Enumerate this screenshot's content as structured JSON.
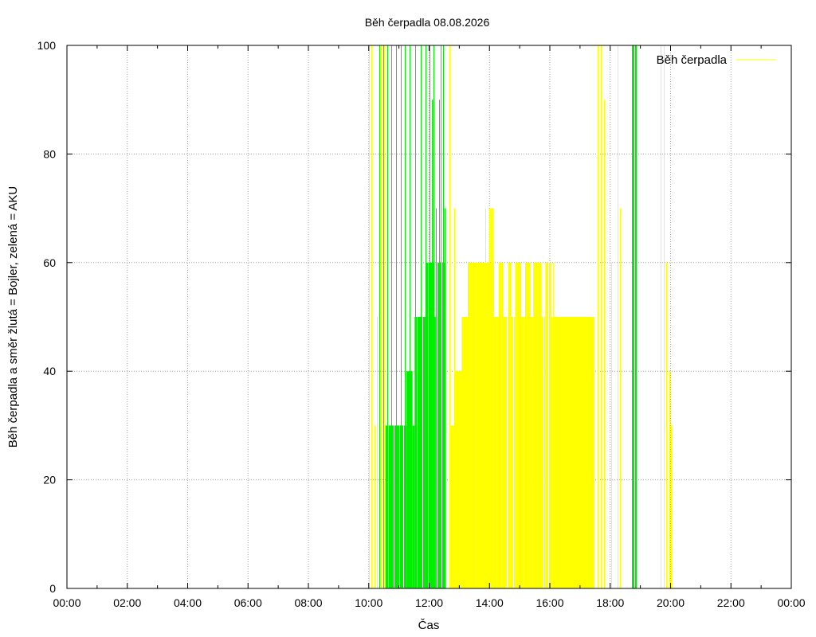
{
  "chart_data": {
    "type": "bar",
    "title": "Běh čerpadla 08.08.2026",
    "xlabel": "Čas",
    "ylabel": "Běh čerpadla a směr žlutá = Bojler, zelená = AKU",
    "xlim": [
      0,
      24
    ],
    "ylim": [
      0,
      100
    ],
    "xticks": [
      "00:00",
      "02:00",
      "04:00",
      "06:00",
      "08:00",
      "10:00",
      "12:00",
      "14:00",
      "16:00",
      "18:00",
      "20:00",
      "22:00",
      "00:00"
    ],
    "yticks": [
      "0",
      "20",
      "40",
      "60",
      "80",
      "100"
    ],
    "grid": true,
    "legend": {
      "position": "top-right",
      "entries": [
        "Běh čerpadla"
      ]
    },
    "colors": {
      "bojler": "#ffff00",
      "aku": "#00ee00",
      "grid": "#a0a0a0"
    },
    "series": [
      {
        "name": "Běh čerpadla",
        "color": "#ffff00",
        "thin_spikes": [
          {
            "x": 10.0,
            "y": 100
          },
          {
            "x": 10.08,
            "y": 100
          },
          {
            "x": 10.18,
            "y": 30
          },
          {
            "x": 10.28,
            "y": 50
          },
          {
            "x": 10.4,
            "y": 100
          },
          {
            "x": 10.52,
            "y": 100
          },
          {
            "x": 12.38,
            "y": 70
          },
          {
            "x": 12.55,
            "y": 70
          },
          {
            "x": 12.68,
            "y": 100
          },
          {
            "x": 12.82,
            "y": 70
          },
          {
            "x": 12.88,
            "y": 40
          },
          {
            "x": 13.05,
            "y": 40
          },
          {
            "x": 13.18,
            "y": 50
          },
          {
            "x": 13.85,
            "y": 70
          },
          {
            "x": 14.0,
            "y": 70
          },
          {
            "x": 14.05,
            "y": 70
          },
          {
            "x": 14.1,
            "y": 70
          },
          {
            "x": 17.58,
            "y": 100
          },
          {
            "x": 17.68,
            "y": 100
          },
          {
            "x": 17.8,
            "y": 90
          },
          {
            "x": 18.02,
            "y": 60
          },
          {
            "x": 18.25,
            "y": 100
          },
          {
            "x": 18.32,
            "y": 70
          },
          {
            "x": 19.68,
            "y": 100
          },
          {
            "x": 19.78,
            "y": 100
          },
          {
            "x": 19.86,
            "y": 60
          },
          {
            "x": 19.95,
            "y": 40
          },
          {
            "x": 20.0,
            "y": 30
          }
        ],
        "filled": [
          {
            "x0": 12.68,
            "x1": 12.86,
            "y": 30
          },
          {
            "x0": 12.86,
            "x1": 13.08,
            "y": 40
          },
          {
            "x0": 13.08,
            "x1": 13.28,
            "y": 50
          },
          {
            "x0": 13.28,
            "x1": 14.15,
            "y": 60
          },
          {
            "x0": 14.15,
            "x1": 14.3,
            "y": 50
          },
          {
            "x0": 14.3,
            "x1": 14.45,
            "y": 60
          },
          {
            "x0": 14.45,
            "x1": 14.62,
            "y": 50
          },
          {
            "x0": 14.62,
            "x1": 14.72,
            "y": 60
          },
          {
            "x0": 14.72,
            "x1": 14.85,
            "y": 50
          },
          {
            "x0": 14.85,
            "x1": 15.05,
            "y": 60
          },
          {
            "x0": 15.05,
            "x1": 15.18,
            "y": 50
          },
          {
            "x0": 15.18,
            "x1": 15.35,
            "y": 60
          },
          {
            "x0": 15.35,
            "x1": 15.45,
            "y": 50
          },
          {
            "x0": 15.45,
            "x1": 15.72,
            "y": 60
          },
          {
            "x0": 15.72,
            "x1": 15.85,
            "y": 50
          },
          {
            "x0": 15.85,
            "x1": 16.05,
            "y": 60
          },
          {
            "x0": 16.05,
            "x1": 16.1,
            "y": 50
          },
          {
            "x0": 16.1,
            "x1": 16.1,
            "y": 60
          },
          {
            "x0": 16.1,
            "x1": 17.48,
            "y": 50
          }
        ],
        "dips": [
          13.55,
          14.22,
          14.38,
          14.58,
          14.78,
          15.12,
          15.4,
          15.6,
          15.78,
          15.95,
          16.08
        ]
      },
      {
        "color": "#00ee00",
        "thin_spikes": [
          {
            "x": 10.35,
            "y": 100
          },
          {
            "x": 10.48,
            "y": 100
          },
          {
            "x": 10.62,
            "y": 100
          },
          {
            "x": 10.75,
            "y": 100
          },
          {
            "x": 10.9,
            "y": 100
          },
          {
            "x": 11.05,
            "y": 100
          },
          {
            "x": 11.2,
            "y": 100
          },
          {
            "x": 11.35,
            "y": 100
          },
          {
            "x": 11.55,
            "y": 100
          },
          {
            "x": 11.72,
            "y": 100
          },
          {
            "x": 11.88,
            "y": 100
          },
          {
            "x": 12.0,
            "y": 100
          },
          {
            "x": 12.08,
            "y": 90
          },
          {
            "x": 12.15,
            "y": 100
          },
          {
            "x": 12.22,
            "y": 70
          },
          {
            "x": 12.32,
            "y": 90
          },
          {
            "x": 12.38,
            "y": 100
          },
          {
            "x": 12.45,
            "y": 100
          },
          {
            "x": 12.52,
            "y": 70
          }
        ],
        "filled": [
          {
            "x0": 10.55,
            "x1": 11.25,
            "y": 30
          },
          {
            "x0": 11.25,
            "x1": 11.45,
            "y": 40
          },
          {
            "x0": 11.45,
            "x1": 11.52,
            "y": 30
          },
          {
            "x0": 11.52,
            "x1": 11.88,
            "y": 50
          },
          {
            "x0": 11.88,
            "x1": 12.15,
            "y": 60
          },
          {
            "x0": 12.15,
            "x1": 12.22,
            "y": 50
          },
          {
            "x0": 12.22,
            "x1": 12.55,
            "y": 60
          },
          {
            "x0": 18.72,
            "x1": 18.88,
            "y": 100
          }
        ],
        "dips": [
          10.65,
          10.82,
          11.0,
          11.15,
          11.6,
          11.78,
          11.95,
          12.25,
          12.4,
          18.8
        ]
      }
    ]
  }
}
